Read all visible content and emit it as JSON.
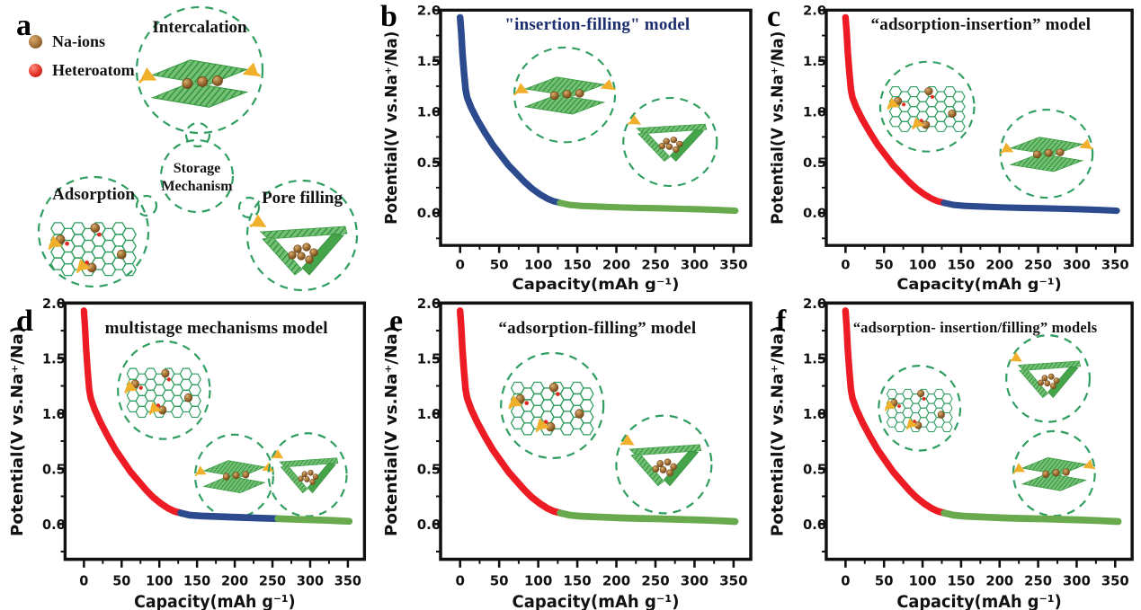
{
  "panel_a": {
    "letter": "a",
    "legend": [
      {
        "label": "Na-ions",
        "color": "#9a6a30"
      },
      {
        "label": "Heteroatom",
        "color": "#e02b20"
      }
    ],
    "nodes": {
      "top": "Intercalation",
      "left": "Adsorption",
      "right": "Pore filling",
      "center_line1": "Storage",
      "center_line2": "Mechanism"
    }
  },
  "colors": {
    "red": "#ed1c24",
    "blue": "#2c4a8e",
    "green": "#6aaa4e",
    "dashed": "#2f9e60",
    "lattice": "#2f9e60",
    "axis": "#111111",
    "na_ion": "#9a6a30",
    "heteroatom": "#e02b20",
    "arrow_yellow": "#f0b02c",
    "title_navy": "#1c2e6e",
    "title_black": "#111111"
  },
  "chart_data": [
    {
      "panel": "b",
      "type": "line",
      "title": "\"insertion-filling\" model",
      "title_color": "#1c2e6e",
      "xlabel": "Capacity(mAh g⁻¹)",
      "ylabel": "Potential(V vs.Na⁺/Na)",
      "xticks": [
        0,
        50,
        100,
        150,
        200,
        250,
        300,
        350
      ],
      "yticks": [
        "0.0",
        "0.5",
        "1.0",
        "1.5",
        "2.0"
      ],
      "xlim": [
        -25,
        372
      ],
      "ylim": [
        -0.32,
        2.0
      ],
      "grid": false,
      "legend_position": "none",
      "series": [
        {
          "name": "insertion",
          "color_key": "blue",
          "points": [
            [
              0,
              1.93
            ],
            [
              1.5,
              1.78
            ],
            [
              3,
              1.58
            ],
            [
              5,
              1.38
            ],
            [
              7,
              1.22
            ],
            [
              9,
              1.14
            ],
            [
              14,
              1.04
            ],
            [
              22,
              0.92
            ],
            [
              32,
              0.79
            ],
            [
              42,
              0.67
            ],
            [
              52,
              0.57
            ],
            [
              62,
              0.47
            ],
            [
              72,
              0.39
            ],
            [
              82,
              0.31
            ],
            [
              92,
              0.24
            ],
            [
              102,
              0.185
            ],
            [
              112,
              0.14
            ],
            [
              120,
              0.115
            ],
            [
              128,
              0.1
            ]
          ]
        },
        {
          "name": "filling",
          "color_key": "green",
          "points": [
            [
              128,
              0.1
            ],
            [
              140,
              0.08
            ],
            [
              155,
              0.07
            ],
            [
              180,
              0.062
            ],
            [
              205,
              0.055
            ],
            [
              230,
              0.05
            ],
            [
              255,
              0.046
            ],
            [
              280,
              0.041
            ],
            [
              305,
              0.036
            ],
            [
              330,
              0.03
            ],
            [
              352,
              0.022
            ]
          ]
        }
      ],
      "insets": [
        {
          "type": "intercalation",
          "cx": 0.4,
          "cy": 0.36,
          "r": 56
        },
        {
          "type": "pore",
          "cx": 0.74,
          "cy": 0.56,
          "r": 52
        }
      ]
    },
    {
      "panel": "c",
      "type": "line",
      "title": "“adsorption-insertion”  model",
      "title_color": "#111111",
      "xlabel": "Capacity(mAh g⁻¹)",
      "ylabel": "Potential(V vs.Na⁺/Na)",
      "xticks": [
        0,
        50,
        100,
        150,
        200,
        250,
        300,
        350
      ],
      "yticks": [
        "0.0",
        "0.5",
        "1.0",
        "1.5",
        "2.0"
      ],
      "xlim": [
        -25,
        372
      ],
      "ylim": [
        -0.32,
        2.0
      ],
      "grid": false,
      "legend_position": "none",
      "series": [
        {
          "name": "adsorption",
          "color_key": "red",
          "points": [
            [
              0,
              1.93
            ],
            [
              1.5,
              1.78
            ],
            [
              3,
              1.58
            ],
            [
              5,
              1.38
            ],
            [
              7,
              1.22
            ],
            [
              9,
              1.14
            ],
            [
              14,
              1.04
            ],
            [
              22,
              0.92
            ],
            [
              32,
              0.79
            ],
            [
              42,
              0.67
            ],
            [
              52,
              0.57
            ],
            [
              62,
              0.47
            ],
            [
              72,
              0.39
            ],
            [
              82,
              0.31
            ],
            [
              92,
              0.24
            ],
            [
              102,
              0.185
            ],
            [
              112,
              0.14
            ],
            [
              120,
              0.115
            ],
            [
              128,
              0.1
            ]
          ]
        },
        {
          "name": "insertion",
          "color_key": "blue",
          "points": [
            [
              128,
              0.1
            ],
            [
              140,
              0.08
            ],
            [
              155,
              0.07
            ],
            [
              180,
              0.062
            ],
            [
              205,
              0.055
            ],
            [
              230,
              0.05
            ],
            [
              255,
              0.046
            ],
            [
              280,
              0.041
            ],
            [
              305,
              0.036
            ],
            [
              330,
              0.03
            ],
            [
              352,
              0.022
            ]
          ]
        }
      ],
      "insets": [
        {
          "type": "adsorption",
          "cx": 0.33,
          "cy": 0.41,
          "r": 53
        },
        {
          "type": "intercalation",
          "cx": 0.72,
          "cy": 0.61,
          "r": 52
        }
      ]
    },
    {
      "panel": "d",
      "type": "line",
      "title": "multistage mechanisms model",
      "title_color": "#111111",
      "xlabel": "Capacity(mAh g⁻¹)",
      "ylabel": "Potential(V vs.Na⁺/Na)",
      "xticks": [
        0,
        50,
        100,
        150,
        200,
        250,
        300,
        350
      ],
      "yticks": [
        "0.0",
        "0.5",
        "1.0",
        "1.5",
        "2.0"
      ],
      "xlim": [
        -25,
        372
      ],
      "ylim": [
        -0.32,
        2.0
      ],
      "grid": false,
      "legend_position": "none",
      "series": [
        {
          "name": "adsorption",
          "color_key": "red",
          "points": [
            [
              0,
              1.93
            ],
            [
              1.5,
              1.78
            ],
            [
              3,
              1.58
            ],
            [
              5,
              1.38
            ],
            [
              7,
              1.22
            ],
            [
              9,
              1.14
            ],
            [
              14,
              1.04
            ],
            [
              22,
              0.92
            ],
            [
              32,
              0.79
            ],
            [
              42,
              0.67
            ],
            [
              52,
              0.57
            ],
            [
              62,
              0.47
            ],
            [
              72,
              0.39
            ],
            [
              82,
              0.31
            ],
            [
              92,
              0.24
            ],
            [
              102,
              0.185
            ],
            [
              112,
              0.14
            ],
            [
              120,
              0.115
            ],
            [
              128,
              0.1
            ]
          ]
        },
        {
          "name": "insertion",
          "color_key": "blue",
          "points": [
            [
              128,
              0.1
            ],
            [
              140,
              0.08
            ],
            [
              155,
              0.072
            ],
            [
              180,
              0.066
            ],
            [
              205,
              0.06
            ],
            [
              232,
              0.053
            ],
            [
              257,
              0.048
            ]
          ]
        },
        {
          "name": "filling",
          "color_key": "green",
          "points": [
            [
              257,
              0.048
            ],
            [
              280,
              0.042
            ],
            [
              305,
              0.037
            ],
            [
              330,
              0.031
            ],
            [
              352,
              0.024
            ]
          ]
        }
      ],
      "insets": [
        {
          "type": "adsorption",
          "cx": 0.33,
          "cy": 0.34,
          "r": 53
        },
        {
          "type": "intercalation",
          "cx": 0.565,
          "cy": 0.675,
          "r": 45
        },
        {
          "type": "pore",
          "cx": 0.81,
          "cy": 0.67,
          "r": 45
        }
      ]
    },
    {
      "panel": "e",
      "type": "line",
      "title": "“adsorption-filling” model",
      "title_color": "#111111",
      "xlabel": "Capacity(mAh g⁻¹)",
      "ylabel": "Potential(V vs.Na⁺/Na)",
      "xticks": [
        0,
        50,
        100,
        150,
        200,
        250,
        300,
        350
      ],
      "yticks": [
        "0.0",
        "0.5",
        "1.0",
        "1.5",
        "2.0"
      ],
      "xlim": [
        -25,
        372
      ],
      "ylim": [
        -0.32,
        2.0
      ],
      "grid": false,
      "legend_position": "none",
      "series": [
        {
          "name": "adsorption",
          "color_key": "red",
          "points": [
            [
              0,
              1.93
            ],
            [
              1.5,
              1.78
            ],
            [
              3,
              1.58
            ],
            [
              5,
              1.38
            ],
            [
              7,
              1.22
            ],
            [
              9,
              1.14
            ],
            [
              14,
              1.04
            ],
            [
              22,
              0.92
            ],
            [
              32,
              0.79
            ],
            [
              42,
              0.67
            ],
            [
              52,
              0.57
            ],
            [
              62,
              0.47
            ],
            [
              72,
              0.39
            ],
            [
              82,
              0.31
            ],
            [
              92,
              0.24
            ],
            [
              102,
              0.185
            ],
            [
              112,
              0.14
            ],
            [
              120,
              0.115
            ],
            [
              128,
              0.1
            ]
          ]
        },
        {
          "name": "filling",
          "color_key": "green",
          "points": [
            [
              128,
              0.1
            ],
            [
              140,
              0.08
            ],
            [
              155,
              0.07
            ],
            [
              180,
              0.062
            ],
            [
              205,
              0.055
            ],
            [
              230,
              0.05
            ],
            [
              255,
              0.046
            ],
            [
              280,
              0.041
            ],
            [
              305,
              0.036
            ],
            [
              330,
              0.03
            ],
            [
              352,
              0.022
            ]
          ]
        }
      ],
      "insets": [
        {
          "type": "adsorption",
          "cx": 0.36,
          "cy": 0.4,
          "r": 57
        },
        {
          "type": "pore",
          "cx": 0.72,
          "cy": 0.63,
          "r": 53
        }
      ]
    },
    {
      "panel": "f",
      "type": "line",
      "title": "“adsorption- insertion/filling” models",
      "title_color": "#111111",
      "xlabel": "Capacity(mAh g⁻¹)",
      "ylabel": "Potential(V vs.Na⁺/Na)",
      "xticks": [
        0,
        50,
        100,
        150,
        200,
        250,
        300,
        350
      ],
      "yticks": [
        "0.0",
        "0.5",
        "1.0",
        "1.5",
        "2.0"
      ],
      "xlim": [
        -25,
        372
      ],
      "ylim": [
        -0.32,
        2.0
      ],
      "grid": false,
      "legend_position": "none",
      "series": [
        {
          "name": "adsorption",
          "color_key": "red",
          "points": [
            [
              0,
              1.93
            ],
            [
              1.5,
              1.78
            ],
            [
              3,
              1.58
            ],
            [
              5,
              1.38
            ],
            [
              7,
              1.22
            ],
            [
              9,
              1.14
            ],
            [
              14,
              1.04
            ],
            [
              22,
              0.92
            ],
            [
              32,
              0.79
            ],
            [
              42,
              0.67
            ],
            [
              52,
              0.57
            ],
            [
              62,
              0.47
            ],
            [
              72,
              0.39
            ],
            [
              82,
              0.31
            ],
            [
              92,
              0.24
            ],
            [
              102,
              0.185
            ],
            [
              112,
              0.14
            ],
            [
              120,
              0.115
            ],
            [
              128,
              0.1
            ]
          ]
        },
        {
          "name": "insertion-filling",
          "color_key": "green",
          "points": [
            [
              128,
              0.1
            ],
            [
              140,
              0.08
            ],
            [
              155,
              0.07
            ],
            [
              180,
              0.062
            ],
            [
              205,
              0.055
            ],
            [
              230,
              0.05
            ],
            [
              255,
              0.046
            ],
            [
              280,
              0.041
            ],
            [
              305,
              0.036
            ],
            [
              330,
              0.03
            ],
            [
              354,
              0.022
            ]
          ]
        }
      ],
      "insets": [
        {
          "type": "adsorption",
          "cx": 0.305,
          "cy": 0.41,
          "r": 46
        },
        {
          "type": "pore",
          "cx": 0.725,
          "cy": 0.295,
          "r": 47
        },
        {
          "type": "intercalation",
          "cx": 0.745,
          "cy": 0.665,
          "r": 46
        }
      ]
    }
  ]
}
